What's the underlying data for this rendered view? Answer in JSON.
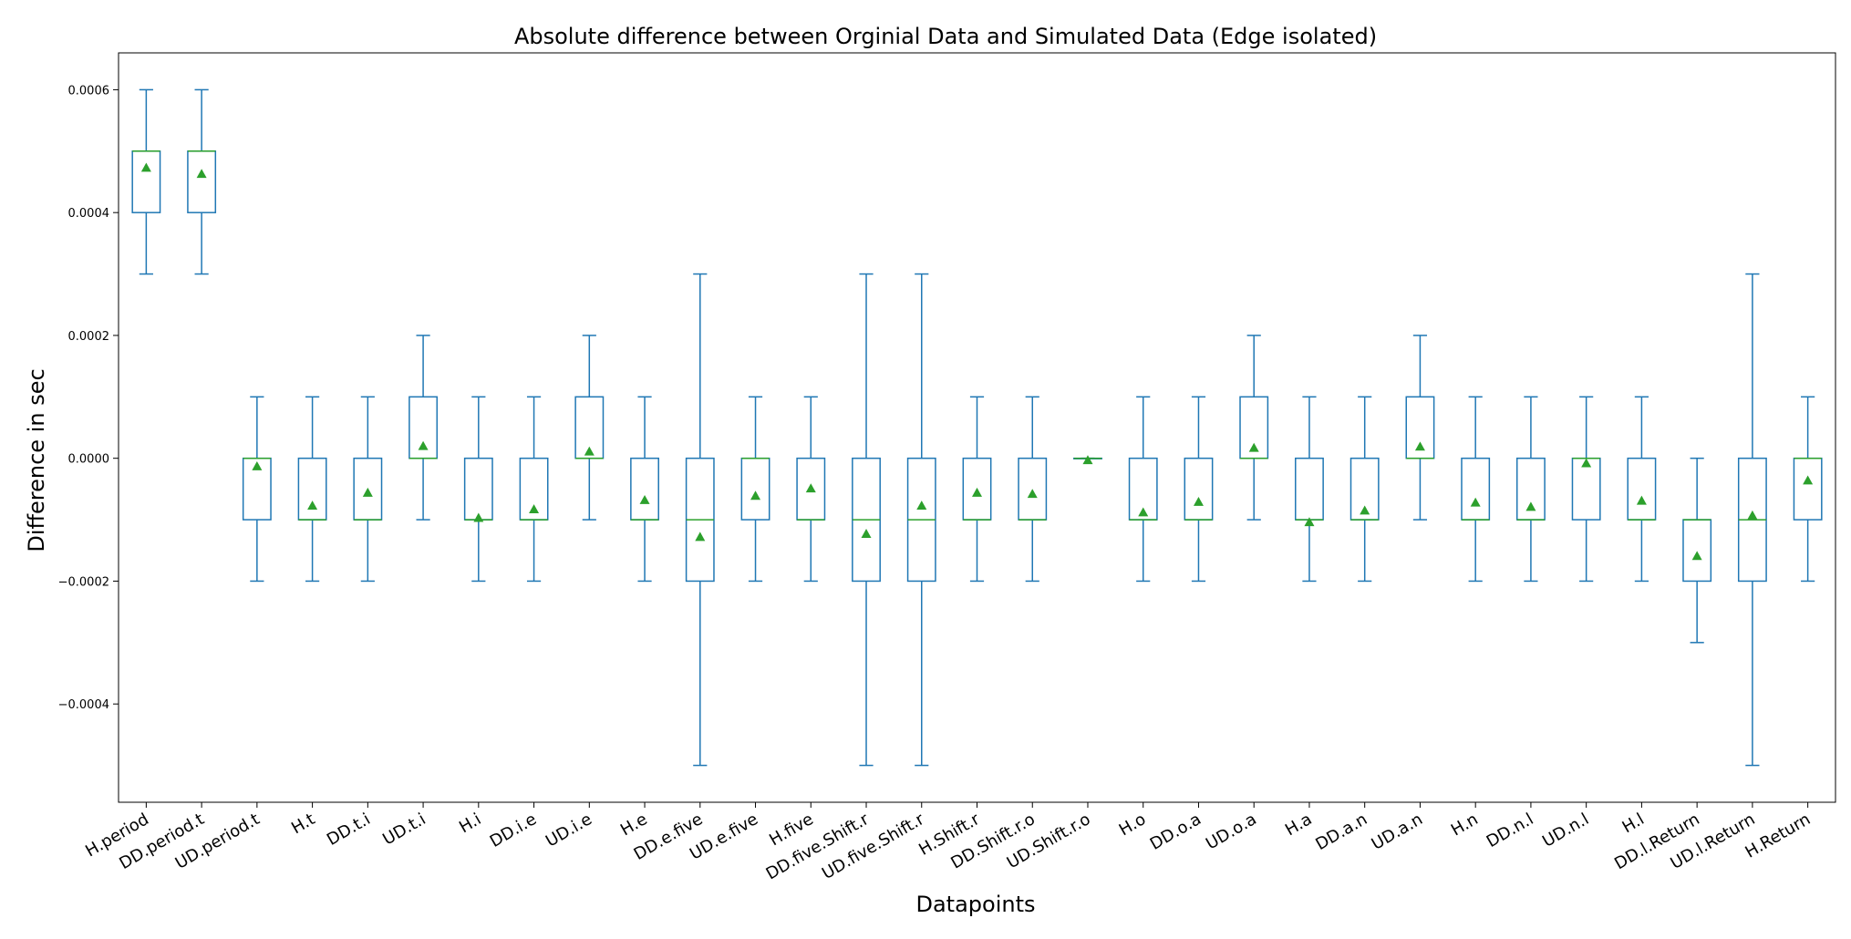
{
  "chart_data": {
    "type": "box",
    "title": "Absolute difference between Orginial Data and Simulated Data (Edge isolated)",
    "xlabel": "Datapoints",
    "ylabel": "Difference in sec",
    "ylim": [
      -0.00056,
      0.00066
    ],
    "yticks": [
      -0.0004,
      -0.0002,
      0.0,
      0.0002,
      0.0004,
      0.0006
    ],
    "ytick_labels": [
      "−0.0004",
      "−0.0002",
      "0.0000",
      "0.0002",
      "0.0004",
      "0.0006"
    ],
    "grid": false,
    "colors": {
      "box": "#1f77b4",
      "median": "#2ca02c",
      "mean": "#2ca02c"
    },
    "categories": [
      "H.period",
      "DD.period.t",
      "UD.period.t",
      "H.t",
      "DD.t.i",
      "UD.t.i",
      "H.i",
      "DD.i.e",
      "UD.i.e",
      "H.e",
      "DD.e.five",
      "UD.e.five",
      "H.five",
      "DD.five.Shift.r",
      "UD.five.Shift.r",
      "H.Shift.r",
      "DD.Shift.r.o",
      "UD.Shift.r.o",
      "H.o",
      "DD.o.a",
      "UD.o.a",
      "H.a",
      "DD.a.n",
      "UD.a.n",
      "H.n",
      "DD.n.l",
      "UD.n.l",
      "H.l",
      "DD.l.Return",
      "UD.l.Return",
      "H.Return"
    ],
    "boxes": [
      {
        "whislo": 0.0003,
        "q1": 0.0004,
        "med": 0.0005,
        "q3": 0.0005,
        "whishi": 0.0006,
        "mean": 0.000473
      },
      {
        "whislo": 0.0003,
        "q1": 0.0004,
        "med": 0.0005,
        "q3": 0.0005,
        "whishi": 0.0006,
        "mean": 0.000463
      },
      {
        "whislo": -0.0002,
        "q1": -0.0001,
        "med": 0.0,
        "q3": 0.0,
        "whishi": 0.0001,
        "mean": -1.3e-05
      },
      {
        "whislo": -0.0002,
        "q1": -0.0001,
        "med": -0.0001,
        "q3": 0.0,
        "whishi": 0.0001,
        "mean": -7.7e-05
      },
      {
        "whislo": -0.0002,
        "q1": -0.0001,
        "med": -0.0001,
        "q3": 0.0,
        "whishi": 0.0001,
        "mean": -5.6e-05
      },
      {
        "whislo": -0.0001,
        "q1": 0.0,
        "med": 0.0,
        "q3": 0.0001,
        "whishi": 0.0002,
        "mean": 2e-05
      },
      {
        "whislo": -0.0002,
        "q1": -0.0001,
        "med": -0.0001,
        "q3": 0.0,
        "whishi": 0.0001,
        "mean": -9.7e-05
      },
      {
        "whislo": -0.0002,
        "q1": -0.0001,
        "med": -0.0001,
        "q3": 0.0,
        "whishi": 0.0001,
        "mean": -8.3e-05
      },
      {
        "whislo": -0.0001,
        "q1": 0.0,
        "med": 0.0,
        "q3": 0.0001,
        "whishi": 0.0002,
        "mean": 1.1e-05
      },
      {
        "whislo": -0.0002,
        "q1": -0.0001,
        "med": -0.0001,
        "q3": 0.0,
        "whishi": 0.0001,
        "mean": -6.8e-05
      },
      {
        "whislo": -0.0005,
        "q1": -0.0002,
        "med": -0.0001,
        "q3": 0.0,
        "whishi": 0.0003,
        "mean": -0.000128
      },
      {
        "whislo": -0.0002,
        "q1": -0.0001,
        "med": 0.0,
        "q3": 0.0,
        "whishi": 0.0001,
        "mean": -6.1e-05
      },
      {
        "whislo": -0.0002,
        "q1": -0.0001,
        "med": -0.0001,
        "q3": 0.0,
        "whishi": 0.0001,
        "mean": -4.9e-05
      },
      {
        "whislo": -0.0005,
        "q1": -0.0002,
        "med": -0.0001,
        "q3": 0.0,
        "whishi": 0.0003,
        "mean": -0.000123
      },
      {
        "whislo": -0.0005,
        "q1": -0.0002,
        "med": -0.0001,
        "q3": 0.0,
        "whishi": 0.0003,
        "mean": -7.7e-05
      },
      {
        "whislo": -0.0002,
        "q1": -0.0001,
        "med": -0.0001,
        "q3": 0.0,
        "whishi": 0.0001,
        "mean": -5.6e-05
      },
      {
        "whislo": -0.0002,
        "q1": -0.0001,
        "med": -0.0001,
        "q3": 0.0,
        "whishi": 0.0001,
        "mean": -5.8e-05
      },
      {
        "whislo": 0.0,
        "q1": 0.0,
        "med": 0.0,
        "q3": 0.0,
        "whishi": 0.0,
        "mean": -3e-06
      },
      {
        "whislo": -0.0002,
        "q1": -0.0001,
        "med": -0.0001,
        "q3": 0.0,
        "whishi": 0.0001,
        "mean": -8.8e-05
      },
      {
        "whislo": -0.0002,
        "q1": -0.0001,
        "med": -0.0001,
        "q3": 0.0,
        "whishi": 0.0001,
        "mean": -7.1e-05
      },
      {
        "whislo": -0.0001,
        "q1": 0.0,
        "med": 0.0,
        "q3": 0.0001,
        "whishi": 0.0002,
        "mean": 1.7e-05
      },
      {
        "whislo": -0.0002,
        "q1": -0.0001,
        "med": -0.0001,
        "q3": 0.0,
        "whishi": 0.0001,
        "mean": -0.000104
      },
      {
        "whislo": -0.0002,
        "q1": -0.0001,
        "med": -0.0001,
        "q3": 0.0,
        "whishi": 0.0001,
        "mean": -8.5e-05
      },
      {
        "whislo": -0.0001,
        "q1": 0.0,
        "med": 0.0,
        "q3": 0.0001,
        "whishi": 0.0002,
        "mean": 1.9e-05
      },
      {
        "whislo": -0.0002,
        "q1": -0.0001,
        "med": -0.0001,
        "q3": 0.0,
        "whishi": 0.0001,
        "mean": -7.2e-05
      },
      {
        "whislo": -0.0002,
        "q1": -0.0001,
        "med": -0.0001,
        "q3": 0.0,
        "whishi": 0.0001,
        "mean": -7.9e-05
      },
      {
        "whislo": -0.0002,
        "q1": -0.0001,
        "med": 0.0,
        "q3": 0.0,
        "whishi": 0.0001,
        "mean": -8e-06
      },
      {
        "whislo": -0.0002,
        "q1": -0.0001,
        "med": -0.0001,
        "q3": 0.0,
        "whishi": 0.0001,
        "mean": -6.9e-05
      },
      {
        "whislo": -0.0003,
        "q1": -0.0002,
        "med": -0.0001,
        "q3": -0.0001,
        "whishi": 0.0,
        "mean": -0.000159
      },
      {
        "whislo": -0.0005,
        "q1": -0.0002,
        "med": -0.0001,
        "q3": 0.0,
        "whishi": 0.0003,
        "mean": -9.3e-05
      },
      {
        "whislo": -0.0002,
        "q1": -0.0001,
        "med": 0.0,
        "q3": 0.0,
        "whishi": 0.0001,
        "mean": -3.6e-05
      }
    ]
  }
}
